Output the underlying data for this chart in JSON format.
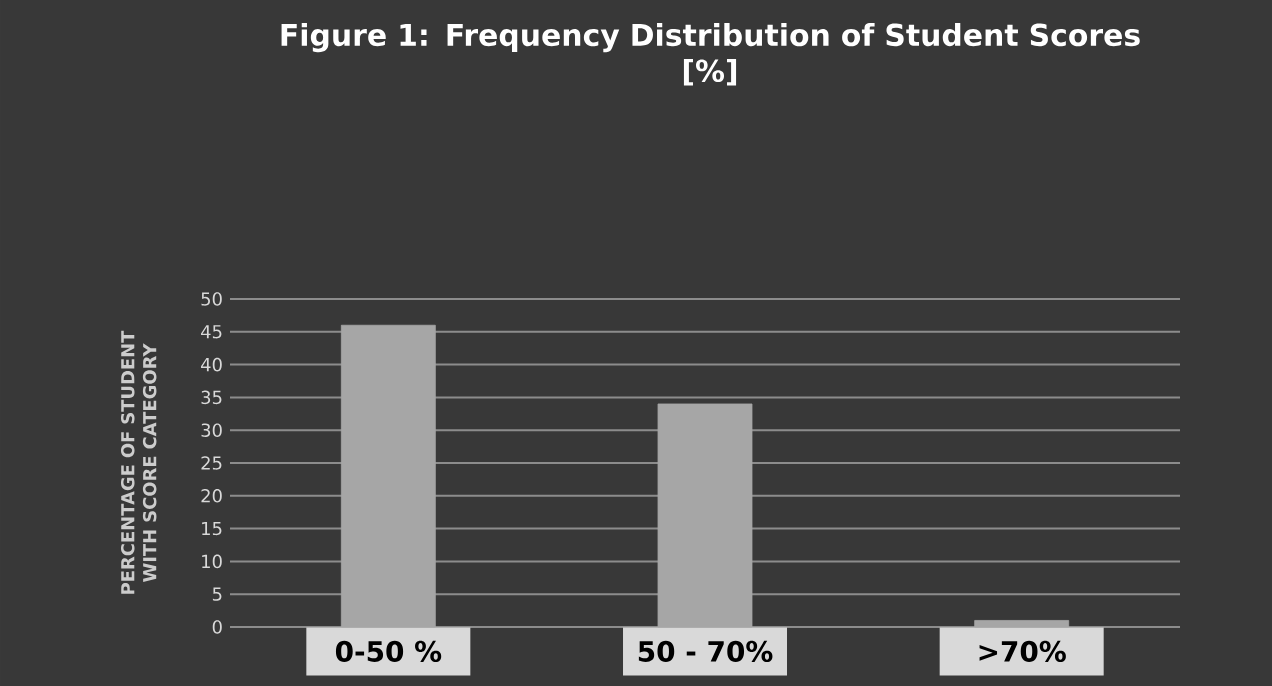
{
  "chart_data": {
    "type": "bar",
    "title": "Figure 1: Frequency Distribution of Student Scores",
    "subtitle": "[%]",
    "ylabel": "PERCENTAGE OF STUDENT WITH  SCORE CATEGORY",
    "categories": [
      "0-50 %",
      "50 - 70%",
      ">70%"
    ],
    "values": [
      46,
      34,
      1
    ],
    "color": "#a6a6a6",
    "ylim": [
      0,
      50
    ],
    "yticks": [
      0,
      5,
      10,
      15,
      20,
      25,
      30,
      35,
      40,
      45,
      50
    ],
    "grid": "y"
  }
}
